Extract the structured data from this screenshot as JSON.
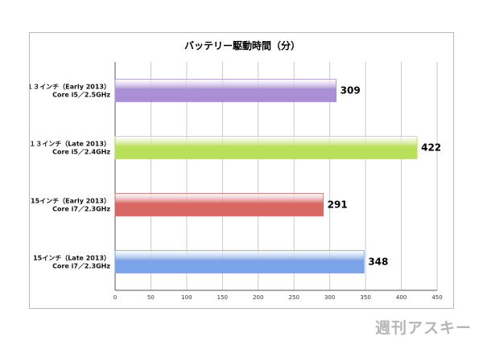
{
  "chart_data": {
    "type": "bar",
    "orientation": "horizontal",
    "title": "バッテリー駆動時間（分）",
    "categories": [
      [
        "１３インチ（Early 2013）",
        "Core i5／2.5GHz"
      ],
      [
        "１３インチ（Late 2013）",
        "Core i5／2.4GHz"
      ],
      [
        "15インチ（Early 2013）",
        "Core i7／2.3GHz"
      ],
      [
        "15インチ（Late 2013）",
        "Core i7／2.3GHz"
      ]
    ],
    "values": [
      309,
      422,
      291,
      348
    ],
    "bar_colors": [
      "#a98fd6",
      "#b9e05a",
      "#d96762",
      "#7aa3e8"
    ],
    "xlim": [
      0,
      450
    ],
    "xticks": [
      0,
      50,
      100,
      150,
      200,
      250,
      300,
      350,
      400,
      450
    ],
    "grid": true,
    "legend": "none"
  },
  "watermark": "週刊アスキー"
}
